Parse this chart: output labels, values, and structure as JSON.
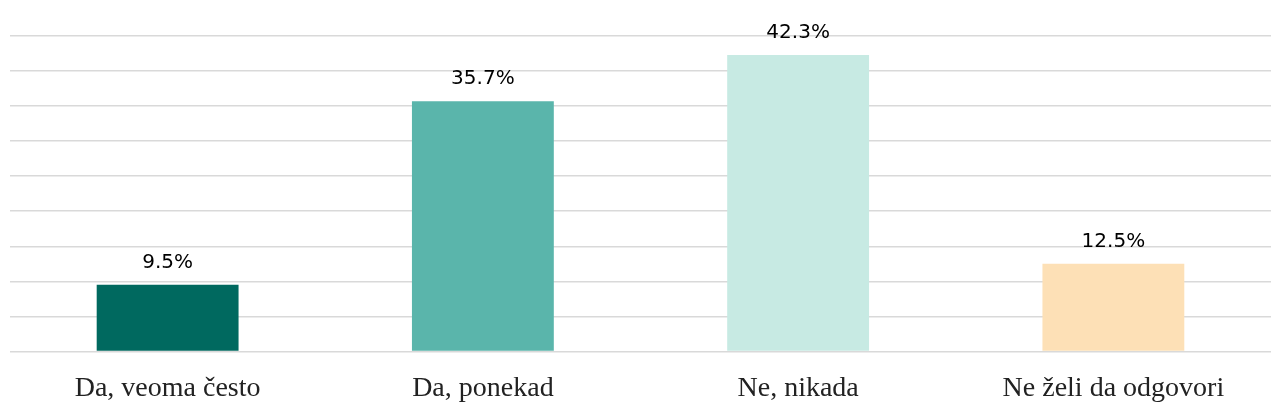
{
  "chart_data": {
    "type": "bar",
    "categories": [
      "Da, veoma često",
      "Da, ponekad",
      "Ne, nikada",
      "Ne želi da odgovori"
    ],
    "values": [
      9.5,
      35.7,
      42.3,
      12.5
    ],
    "colors": [
      "#00695f",
      "#5ab5ab",
      "#c7eae3",
      "#fde0b6"
    ],
    "value_labels": [
      "9.5%",
      "35.7%",
      "42.3%",
      "12.5%"
    ],
    "ylim": [
      0,
      45
    ],
    "yticks": [
      {
        "value": 0,
        "label": null
      },
      {
        "value": 5,
        "label": null
      },
      {
        "value": 10,
        "label": null
      },
      {
        "value": 15,
        "label": null
      },
      {
        "value": 20,
        "label": null
      },
      {
        "value": 25,
        "label": null
      },
      {
        "value": 30,
        "label": null
      },
      {
        "value": 35,
        "label": null
      },
      {
        "value": 40,
        "label": null
      },
      {
        "value": 45,
        "label": null
      }
    ],
    "tick_labels": "x",
    "grid": "y",
    "legend": false
  }
}
